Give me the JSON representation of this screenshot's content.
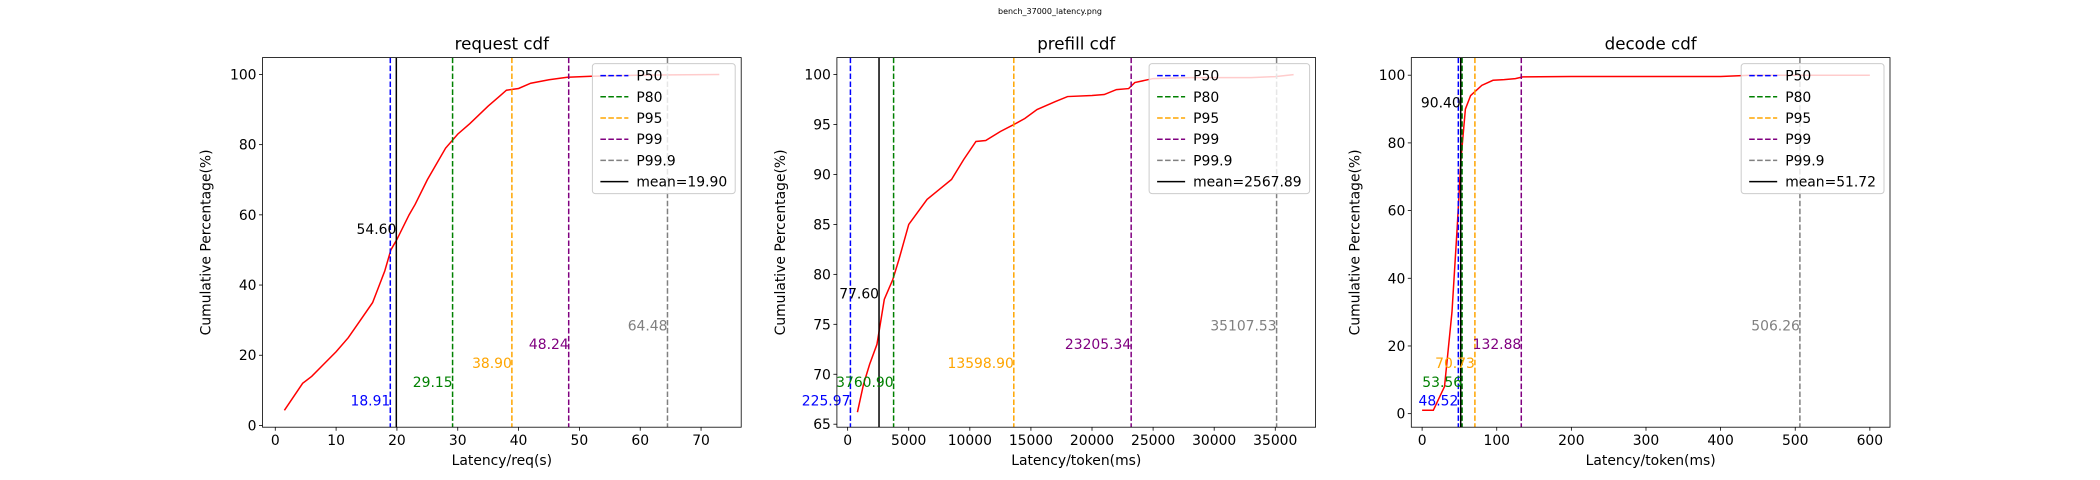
{
  "title": "bench_37000_latency.png",
  "chart_data": [
    {
      "type": "line",
      "title": "request cdf",
      "xlabel": "Latency/req(s)",
      "ylabel": "Cumulative Percentage(%)",
      "xlim": [
        -2.1,
        76.6
      ],
      "ylim": [
        -0.5,
        104.8
      ],
      "xticks": [
        0,
        10,
        20,
        30,
        40,
        50,
        60,
        70
      ],
      "yticks": [
        0,
        20,
        40,
        60,
        80,
        100
      ],
      "x": [
        1.5,
        4.5,
        6,
        8,
        10,
        12,
        14,
        16,
        18,
        19,
        20,
        22,
        23,
        25,
        28,
        30,
        32,
        35,
        37,
        38,
        40,
        42,
        45,
        48,
        52,
        60,
        73
      ],
      "values": [
        4.3,
        12,
        14,
        17.5,
        21,
        25,
        30,
        35,
        44,
        50,
        53,
        60,
        63,
        70,
        79,
        83,
        86,
        91,
        94,
        95.5,
        96,
        97.5,
        98.5,
        99.2,
        99.5,
        99.8,
        100
      ],
      "color": "red",
      "markers": {
        "names": [
          "P50",
          "P80",
          "P95",
          "P99",
          "P99.9"
        ],
        "colors": [
          "blue",
          "green",
          "orange",
          "purple",
          "gray"
        ],
        "values": [
          18.91,
          29.15,
          38.9,
          48.24,
          64.48
        ],
        "value_labels": [
          "18.91",
          "29.15",
          "38.90",
          "48.24",
          "64.48"
        ]
      },
      "mean": {
        "name": "mean=19.90",
        "value": 19.9,
        "color": "black",
        "cdf_value": 54.6,
        "cdf_label": "54.60"
      },
      "legend": "upper right"
    },
    {
      "type": "line",
      "title": "prefill cdf",
      "xlabel": "Latency/token(ms)",
      "ylabel": "Cumulative Percentage(%)",
      "xlim": [
        -880,
        38300
      ],
      "ylim": [
        64.7,
        101.7
      ],
      "xticks": [
        0,
        5000,
        10000,
        15000,
        20000,
        25000,
        30000,
        35000
      ],
      "yticks": [
        65,
        70,
        75,
        80,
        85,
        90,
        95,
        100
      ],
      "x": [
        800,
        1300,
        1800,
        2400,
        3000,
        3700,
        4200,
        5000,
        5600,
        6500,
        7500,
        8500,
        9500,
        10500,
        11300,
        12500,
        13600,
        14500,
        15500,
        17000,
        18000,
        20000,
        21000,
        22000,
        23000,
        23500,
        25000,
        28000,
        33000,
        35000,
        36500
      ],
      "values": [
        66.2,
        69,
        71,
        73,
        77.5,
        79.5,
        81.5,
        85,
        86,
        87.5,
        88.5,
        89.5,
        91.5,
        93.3,
        93.4,
        94.3,
        95,
        95.6,
        96.5,
        97.3,
        97.8,
        97.9,
        98,
        98.5,
        98.6,
        99.2,
        99.6,
        99.7,
        99.7,
        99.8,
        100
      ],
      "color": "red",
      "markers": {
        "names": [
          "P50",
          "P80",
          "P95",
          "P99",
          "P99.9"
        ],
        "colors": [
          "blue",
          "green",
          "orange",
          "purple",
          "gray"
        ],
        "values": [
          225.97,
          3760.9,
          13598.9,
          23205.34,
          35107.53
        ],
        "value_labels": [
          "225.97",
          "3760.90",
          "13598.90",
          "23205.34",
          "35107.53"
        ]
      },
      "mean": {
        "name": "mean=2567.89",
        "value": 2567.89,
        "color": "black",
        "cdf_value": 77.6,
        "cdf_label": "77.60"
      },
      "legend": "upper right"
    },
    {
      "type": "line",
      "title": "decode cdf",
      "xlabel": "Latency/token(ms)",
      "ylabel": "Cumulative Percentage(%)",
      "xlim": [
        -14.5,
        627
      ],
      "ylim": [
        -4,
        105.2
      ],
      "xticks": [
        0,
        100,
        200,
        300,
        400,
        500,
        600
      ],
      "yticks": [
        0,
        20,
        40,
        60,
        80,
        100
      ],
      "x": [
        0,
        15,
        30,
        40,
        47,
        52,
        58,
        65,
        80,
        95,
        110,
        125,
        135,
        200,
        400,
        440,
        600
      ],
      "values": [
        1,
        1,
        8,
        30,
        55,
        75,
        90,
        94,
        97,
        98.5,
        98.7,
        99,
        99.5,
        99.6,
        99.6,
        100,
        100
      ],
      "color": "red",
      "markers": {
        "names": [
          "P50",
          "P80",
          "P95",
          "P99",
          "P99.9"
        ],
        "colors": [
          "blue",
          "green",
          "orange",
          "purple",
          "gray"
        ],
        "values": [
          48.52,
          53.56,
          70.73,
          132.88,
          506.26
        ],
        "value_labels": [
          "48.52",
          "53.56",
          "70.73",
          "132.88",
          "506.26"
        ]
      },
      "mean": {
        "name": "mean=51.72",
        "value": 51.72,
        "color": "black",
        "cdf_value": 90.4,
        "cdf_label": "90.40"
      },
      "legend": "upper right"
    }
  ]
}
